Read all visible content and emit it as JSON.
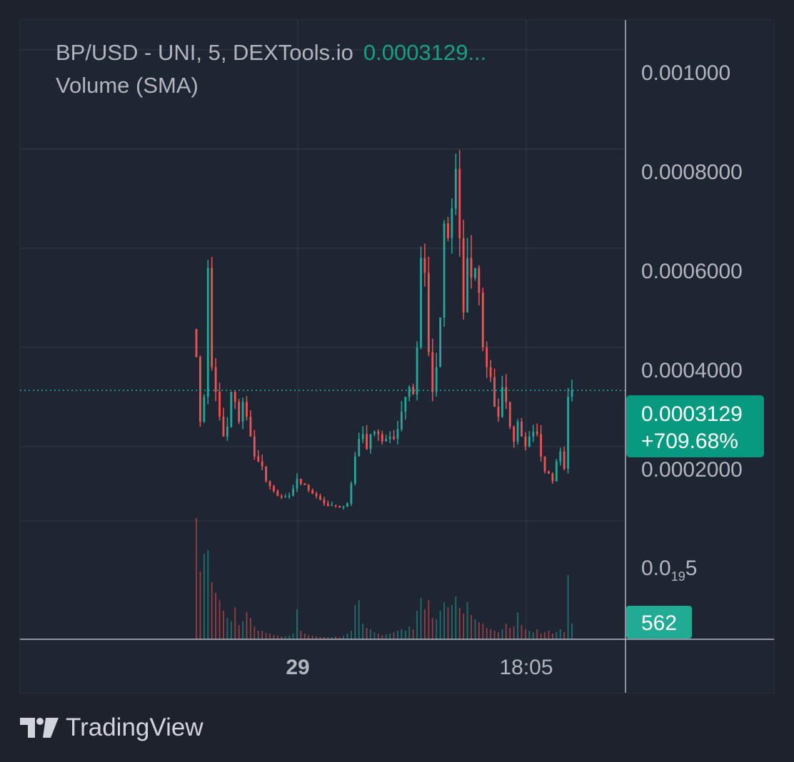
{
  "legend": {
    "title": "BP/USD - UNI, 5, DEXTools.io",
    "last_price": "0.0003129...",
    "volume_label": "Volume (SMA)"
  },
  "price_axis": {
    "labels": [
      "0.001000",
      "0.0008000",
      "0.0006000",
      "0.0004000",
      "0.0002000"
    ],
    "bottom_label_main": "0.0",
    "bottom_label_sub": "19",
    "bottom_label_end": "5"
  },
  "time_axis": {
    "labels": [
      "29",
      "18:05"
    ]
  },
  "badges": {
    "price": "0.0003129",
    "change": "+709.68%",
    "volume": "562"
  },
  "branding": {
    "name": "TradingView"
  },
  "colors": {
    "background": "#1e222d",
    "pane": "#1f2633",
    "grid": "#2c3342",
    "up": "#26a69a",
    "down": "#ef5350",
    "badge_price": "#089981",
    "badge_volume": "#22ab94",
    "axis_text": "#b2b5be"
  },
  "chart_data": {
    "type": "candlestick",
    "title": "BP/USD - UNI, 5, DEXTools.io",
    "ylim": [
      5e-05,
      0.00109
    ],
    "yticks": [
      0.001,
      0.0008,
      0.0006,
      0.0004,
      0.0002
    ],
    "x_ticks": [
      "29",
      "18:05"
    ],
    "last_price": 0.0003129,
    "change_percent": 709.68,
    "last_volume": 562,
    "candles_close": [
      0.00038,
      0.00025,
      0.0003,
      0.00056,
      0.00036,
      0.00031,
      0.00026,
      0.00022,
      0.00024,
      0.00031,
      0.00029,
      0.00025,
      0.00029,
      0.00026,
      0.00022,
      0.00018,
      0.00017,
      0.00016,
      0.00013,
      0.00012,
      0.00011,
      0.0001,
      9.8e-05,
      9.9e-05,
      0.000101,
      0.000115,
      0.000135,
      0.000125,
      0.000122,
      0.000112,
      0.000105,
      0.0001,
      9.3e-05,
      8.5e-05,
      8.1e-05,
      8.2e-05,
      8e-05,
      7.7e-05,
      7.9e-05,
      8.5e-05,
      0.000125,
      0.00018,
      0.000215,
      0.000225,
      0.000195,
      0.000225,
      0.00023,
      0.000225,
      0.00021,
      0.000215,
      0.00022,
      0.000215,
      0.000235,
      0.00027,
      0.0003,
      0.00032,
      0.000305,
      0.0004,
      0.00058,
      0.00055,
      0.00039,
      0.00031,
      0.00036,
      0.00046,
      0.00065,
      0.00062,
      0.00068,
      0.00076,
      0.00062,
      0.00047,
      0.00058,
      0.00054,
      0.00056,
      0.00051,
      0.0004,
      0.00036,
      0.00034,
      0.00028,
      0.00026,
      0.00032,
      0.00029,
      0.00024,
      0.00021,
      0.00025,
      0.00022,
      0.0002,
      0.00022,
      0.00023,
      0.000225,
      0.00018,
      0.00015,
      0.000145,
      0.00013,
      0.00017,
      0.00019,
      0.000155,
      0.0003,
      0.000313
    ],
    "volume": [
      170,
      95,
      120,
      125,
      80,
      65,
      55,
      40,
      30,
      25,
      45,
      20,
      25,
      38,
      30,
      18,
      12,
      12,
      9,
      8,
      6,
      5,
      4,
      4,
      5,
      8,
      42,
      12,
      8,
      6,
      5,
      4,
      3,
      3,
      3,
      3,
      4,
      3,
      5,
      8,
      12,
      48,
      55,
      22,
      16,
      14,
      10,
      8,
      6,
      7,
      8,
      10,
      12,
      14,
      12,
      18,
      14,
      40,
      58,
      42,
      55,
      30,
      28,
      40,
      52,
      45,
      48,
      60,
      44,
      36,
      52,
      34,
      28,
      24,
      22,
      16,
      14,
      12,
      10,
      14,
      22,
      16,
      18,
      38,
      20,
      14,
      12,
      10,
      14,
      8,
      10,
      12,
      8,
      10,
      14,
      10,
      90,
      22
    ]
  }
}
